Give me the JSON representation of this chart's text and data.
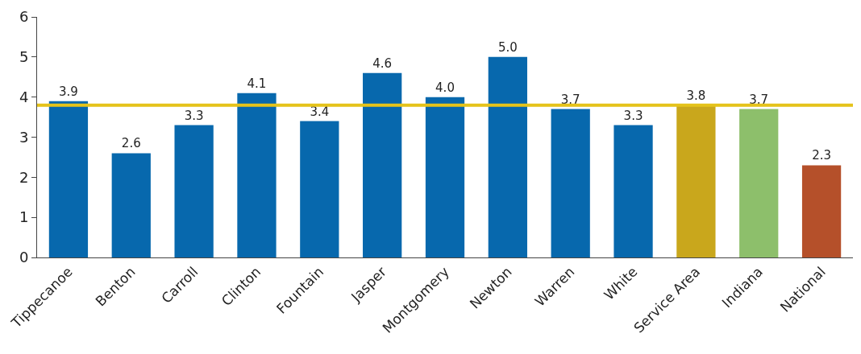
{
  "chart_data": {
    "type": "bar",
    "categories": [
      "Tippecanoe",
      "Benton",
      "Carroll",
      "Clinton",
      "Fountain",
      "Jasper",
      "Montgomery",
      "Newton",
      "Warren",
      "White",
      "Service Area",
      "Indiana",
      "National"
    ],
    "values": [
      3.9,
      2.6,
      3.3,
      4.1,
      3.4,
      4.6,
      4.0,
      5.0,
      3.7,
      3.3,
      3.8,
      3.7,
      2.3
    ],
    "colors": [
      "#0768ad",
      "#0768ad",
      "#0768ad",
      "#0768ad",
      "#0768ad",
      "#0768ad",
      "#0768ad",
      "#0768ad",
      "#0768ad",
      "#0768ad",
      "#c9a71c",
      "#8dbf6b",
      "#b5502a"
    ],
    "value_labels": [
      "3.9",
      "2.6",
      "3.3",
      "4.1",
      "3.4",
      "4.6",
      "4.0",
      "5.0",
      "3.7",
      "3.3",
      "3.8",
      "3.7",
      "2.3"
    ],
    "ylim": [
      0,
      6
    ],
    "yticks": [
      0,
      1,
      2,
      3,
      4,
      5,
      6
    ],
    "ref_lines": [
      {
        "axis": "y",
        "value": 3.8,
        "color": "#e5c31a",
        "line_style": "solid"
      }
    ]
  }
}
